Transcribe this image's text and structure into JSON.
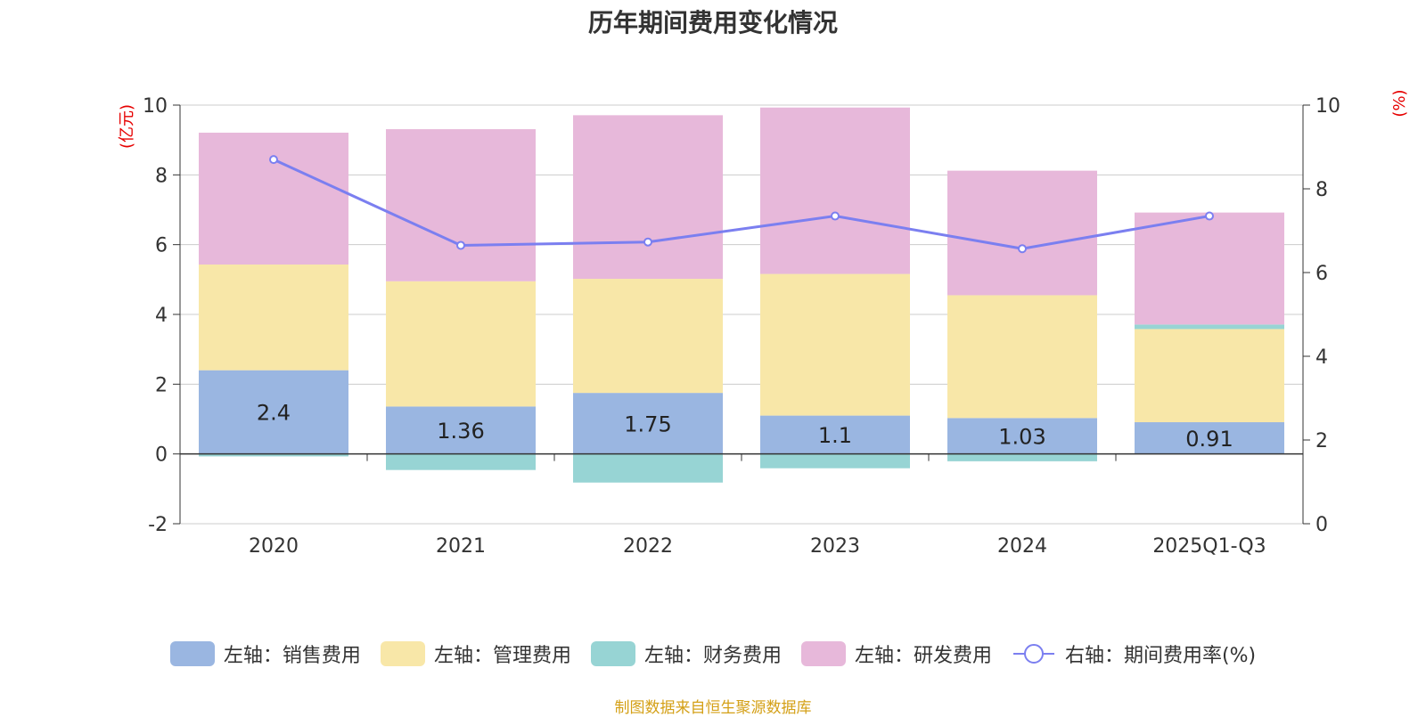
{
  "chart_data": {
    "type": "bar",
    "title": "历年期间费用变化情况",
    "categories": [
      "2020",
      "2021",
      "2022",
      "2023",
      "2024",
      "2025Q1-Q3"
    ],
    "series": [
      {
        "name": "左轴：销售费用",
        "axis": "left",
        "color": "#9ab6e1",
        "values": [
          2.4,
          1.36,
          1.75,
          1.1,
          1.03,
          0.91
        ]
      },
      {
        "name": "左轴：管理费用",
        "axis": "left",
        "color": "#f8e7a8",
        "values": [
          3.03,
          3.59,
          3.27,
          4.06,
          3.52,
          2.67
        ]
      },
      {
        "name": "左轴：财务费用",
        "axis": "left",
        "color": "#97d4d4",
        "values": [
          -0.07,
          -0.46,
          -0.82,
          -0.41,
          -0.21,
          0.13
        ]
      },
      {
        "name": "左轴：研发费用",
        "axis": "left",
        "color": "#e7b8da",
        "values": [
          3.78,
          4.36,
          4.69,
          4.77,
          3.57,
          3.21
        ]
      },
      {
        "name": "右轴：期间费用率(%)",
        "axis": "right",
        "type": "line",
        "color": "#7b7ff0",
        "values": [
          8.7,
          6.65,
          6.73,
          7.35,
          6.57,
          7.35
        ]
      }
    ],
    "data_labels": [
      "2.4",
      "1.36",
      "1.75",
      "1.1",
      "1.03",
      "0.91"
    ],
    "left_axis": {
      "label": "(亿元)",
      "range": [
        -2,
        10
      ],
      "ticks": [
        "-2",
        "0",
        "2",
        "4",
        "6",
        "8",
        "10"
      ],
      "tick_values": [
        -2,
        0,
        2,
        4,
        6,
        8,
        10
      ]
    },
    "right_axis": {
      "label": "(%)",
      "range": [
        0,
        10
      ],
      "ticks": [
        "0",
        "2",
        "4",
        "6",
        "8",
        "10"
      ],
      "tick_values": [
        0,
        2,
        4,
        6,
        8,
        10
      ]
    },
    "grid": true,
    "legend_position": "bottom"
  },
  "source_note": "制图数据来自恒生聚源数据库"
}
